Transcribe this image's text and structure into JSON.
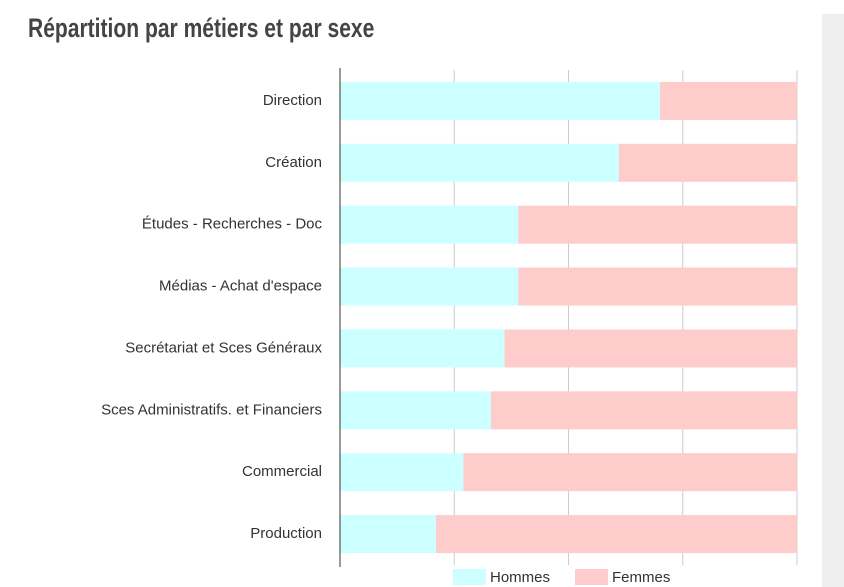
{
  "chart_data": {
    "type": "stacked-bar-horizontal",
    "title": "Répartition par métiers et par sexe",
    "categories": [
      "Direction",
      "Création",
      "Études - Recherches - Doc",
      "Médias - Achat d'espace",
      "Secrétariat et Sces Généraux",
      "Sces Administratifs. et Financiers",
      "Commercial",
      "Production"
    ],
    "series": [
      {
        "name": "Hommes",
        "color": "#ccffff",
        "values": [
          70,
          61,
          39,
          39,
          36,
          33,
          27,
          21
        ]
      },
      {
        "name": "Femmes",
        "color": "#ffcccc",
        "values": [
          30,
          39,
          61,
          61,
          64,
          67,
          73,
          79
        ]
      }
    ],
    "xlim": [
      0,
      100
    ],
    "xticks": [
      0,
      25,
      50,
      75,
      100
    ],
    "grid": true,
    "legend": "bottom"
  }
}
